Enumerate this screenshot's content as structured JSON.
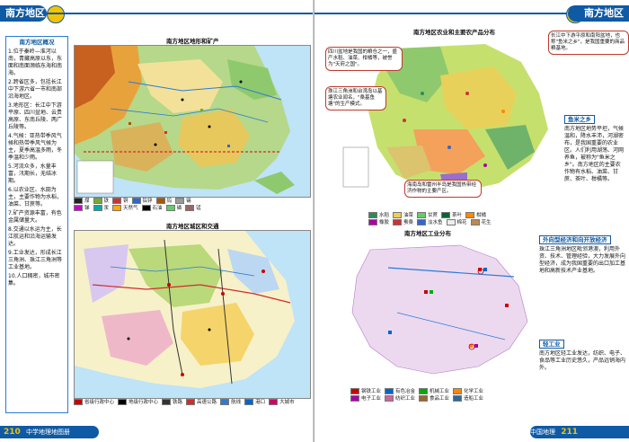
{
  "left_page": {
    "header_title": "南方地区",
    "text_column": {
      "heading": "南方地区概况",
      "paragraphs": [
        "1.位于秦岭—淮河以南，青藏高原以东，东面和南面濒临东海和南海。",
        "2.跨省区多，包括长江中下游六省一市和南部沿海地区。",
        "3.地形区：长江中下游平原、四川盆地、云贵高原、东南丘陵、两广丘陵等。",
        "4.气候：亚热带季风气候和热带季风气候为主，夏季高温多雨，冬季温和少雨。",
        "5.河流众多，水量丰富，汛期长，无结冰期。",
        "6.以农业区、水田为主，主要作物为水稻，油菜、甘蔗等。",
        "7.矿产资源丰富，有色金属储量大。",
        "8.交通以水运为主，长江航运和沿海运输发达。",
        "9.工业发达，形成长江三角洲、珠江三角洲等工业基地。",
        "10.人口稠密，城市密集。"
      ]
    },
    "map_top_title": "南方地区地形和矿产",
    "map_top_legend": [
      "煤",
      "铁",
      "铜",
      "铅锌",
      "钨",
      "锡",
      "锑",
      "汞",
      "天然气",
      "石油",
      "磷",
      "锰"
    ],
    "map_bottom_title": "南方地区城区和交通",
    "map_bottom_legend": [
      "省级行政中心",
      "地级行政中心",
      "铁路",
      "高速公路",
      "航线",
      "港口",
      "大城市"
    ],
    "footer_num": "210",
    "footer_text": "中学地理地图册"
  },
  "right_page": {
    "header_title": "南方地区",
    "map_top_title": "南方地区农业和主要农产品分布",
    "callouts": {
      "c1": "四川盆地是我国的粮仓之一，盛产水稻、油菜、柑橘等，被誉为\"天府之国\"。",
      "c2": "长江中下游平原和南阳盆地，也称\"鱼米之乡\"，是我国重要的商品粮基地。",
      "c3": "珠江三角洲和台湾岛以基塘农业闻名，\"桑基鱼塘\"的生产模式。",
      "c4": "海南岛和雷州半岛是我国热带经济作物的主要产区。"
    },
    "sidebox_top": {
      "heading": "鱼米之乡",
      "text": "南方地区地势平坦，气候温和，降水丰沛，河湖密布，是我国重要的农业区。人们利用湖荡、河网养鱼，被称为\"鱼米之乡\"。南方地区的主要农作物有水稻、油菜、甘蔗、茶叶、柑橘等。"
    },
    "map_top_legend": [
      "水稻",
      "油菜",
      "甘蔗",
      "茶叶",
      "柑橘",
      "橡胶",
      "蚕桑",
      "淡水鱼",
      "棉花",
      "花生"
    ],
    "map_bottom_title": "南方地区工业分布",
    "sidebox_bottom": {
      "heading": "外向型经济和向开放经济",
      "text": "珠江三角洲地区毗邻港澳，利用外资、技术、管理经验，大力发展外向型经济，成为我国重要的出口加工基地和高新技术产业基地。"
    },
    "sidebox_bottom2": {
      "heading": "轻工业",
      "text": "南方地区轻工业发达，纺织、电子、食品等工业历史悠久，产品远销海内外。"
    },
    "map_bottom_legend": [
      "钢铁工业",
      "有色冶金",
      "机械工业",
      "化学工业",
      "电子工业",
      "纺织工业",
      "食品工业",
      "造船工业"
    ],
    "footer_num": "211",
    "footer_text": "中国地理"
  },
  "colors": {
    "brand_blue": "#0f5aa5",
    "accent_yellow": "#f4c300",
    "sea_blue": "#bfe3f7",
    "callout_red": "#c0392b"
  }
}
